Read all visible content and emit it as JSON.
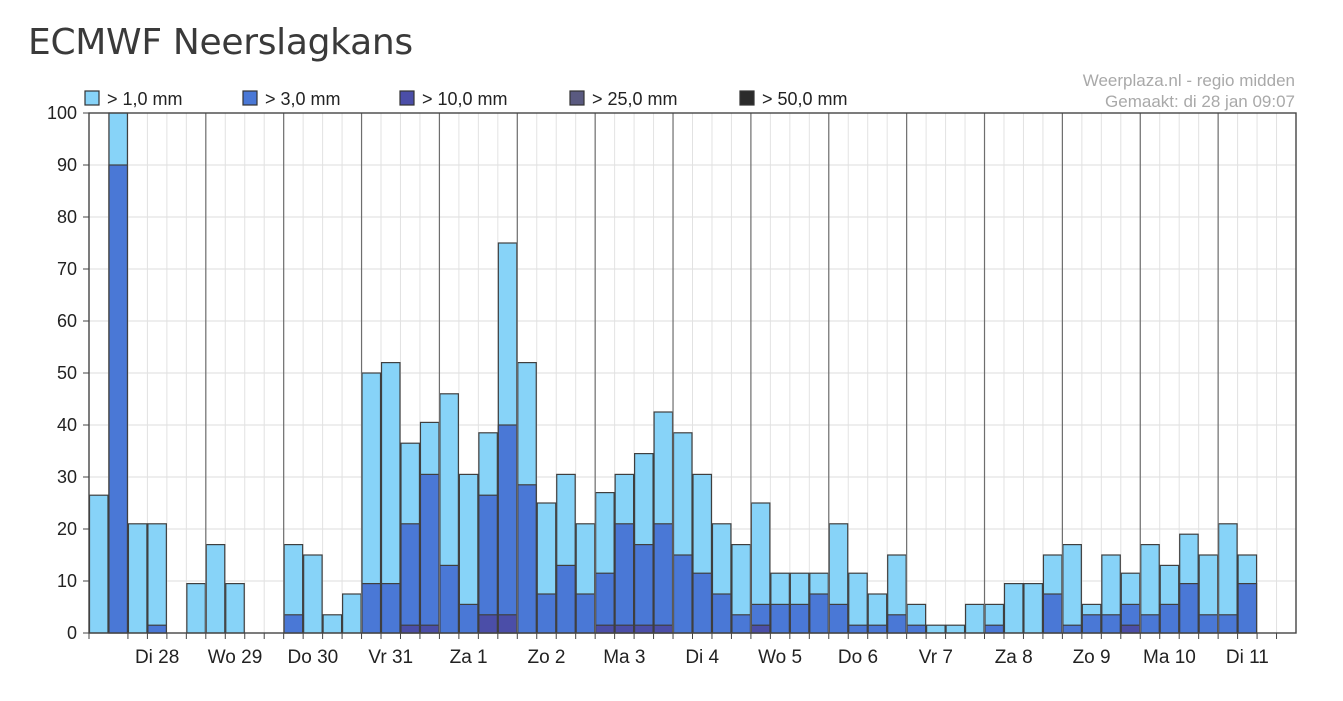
{
  "page": {
    "title": "ECMWF Neerslagkans",
    "source_line1": "Weerplaza.nl - regio midden",
    "source_line2": "Gemaakt: di 28 jan 09:07"
  },
  "chart_data": {
    "type": "bar",
    "stacked": true,
    "ylim": [
      0,
      100
    ],
    "yticks": [
      0,
      10,
      20,
      30,
      40,
      50,
      60,
      70,
      80,
      90,
      100
    ],
    "grid": true,
    "legend_position": "top",
    "day_labels": [
      "Di 28",
      "Wo 29",
      "Do 30",
      "Vr 31",
      "Za 1",
      "Zo 2",
      "Ma 3",
      "Di 4",
      "Wo 5",
      "Do 6",
      "Vr 7",
      "Za 8",
      "Zo 9",
      "Ma 10",
      "Di 11"
    ],
    "series": [
      {
        "name": "> 1,0 mm",
        "color": "#87d3f8",
        "values": [
          26.5,
          100,
          21,
          21,
          0,
          9.5,
          17,
          9.5,
          0,
          0,
          17,
          15,
          3.5,
          7.5,
          50,
          52,
          36.5,
          40.5,
          46,
          30.5,
          38.5,
          75,
          52,
          25,
          30.5,
          21,
          27,
          30.5,
          34.5,
          42.5,
          38.5,
          30.5,
          21,
          17,
          25,
          11.5,
          11.5,
          11.5,
          21,
          11.5,
          7.5,
          15,
          5.5,
          1.5,
          1.5,
          5.5,
          5.5,
          9.5,
          9.5,
          15,
          17,
          5.5,
          15,
          11.5,
          17,
          13,
          19,
          15,
          21,
          15
        ]
      },
      {
        "name": "> 3,0 mm",
        "color": "#4a78d6",
        "values": [
          0,
          90,
          0,
          1.5,
          0,
          0,
          0,
          0,
          0,
          0,
          3.5,
          0,
          0,
          0,
          9.5,
          9.5,
          21,
          30.5,
          13,
          5.5,
          26.5,
          40,
          28.5,
          7.5,
          13,
          7.5,
          11.5,
          21,
          17,
          21,
          15,
          11.5,
          7.5,
          3.5,
          5.5,
          5.5,
          5.5,
          7.5,
          5.5,
          1.5,
          1.5,
          3.5,
          1.5,
          0,
          0,
          0,
          1.5,
          0,
          0,
          7.5,
          1.5,
          3.5,
          3.5,
          5.5,
          3.5,
          5.5,
          9.5,
          3.5,
          3.5,
          9.5
        ]
      },
      {
        "name": "> 10,0 mm",
        "color": "#4b4ea8",
        "values": [
          0,
          0,
          0,
          0,
          0,
          0,
          0,
          0,
          0,
          0,
          0,
          0,
          0,
          0,
          0,
          0,
          1.5,
          1.5,
          0,
          0,
          3.5,
          3.5,
          0,
          0,
          0,
          0,
          1.5,
          1.5,
          1.5,
          1.5,
          0,
          0,
          0,
          0,
          1.5,
          0,
          0,
          0,
          0,
          0,
          0,
          0,
          0,
          0,
          0,
          0,
          0,
          0,
          0,
          0,
          0,
          0,
          0,
          1.5,
          0,
          0,
          0,
          0,
          0,
          0
        ]
      },
      {
        "name": "> 25,0 mm",
        "color": "#5a5a80",
        "values": []
      },
      {
        "name": "> 50,0 mm",
        "color": "#2b2b2b",
        "values": []
      }
    ]
  }
}
